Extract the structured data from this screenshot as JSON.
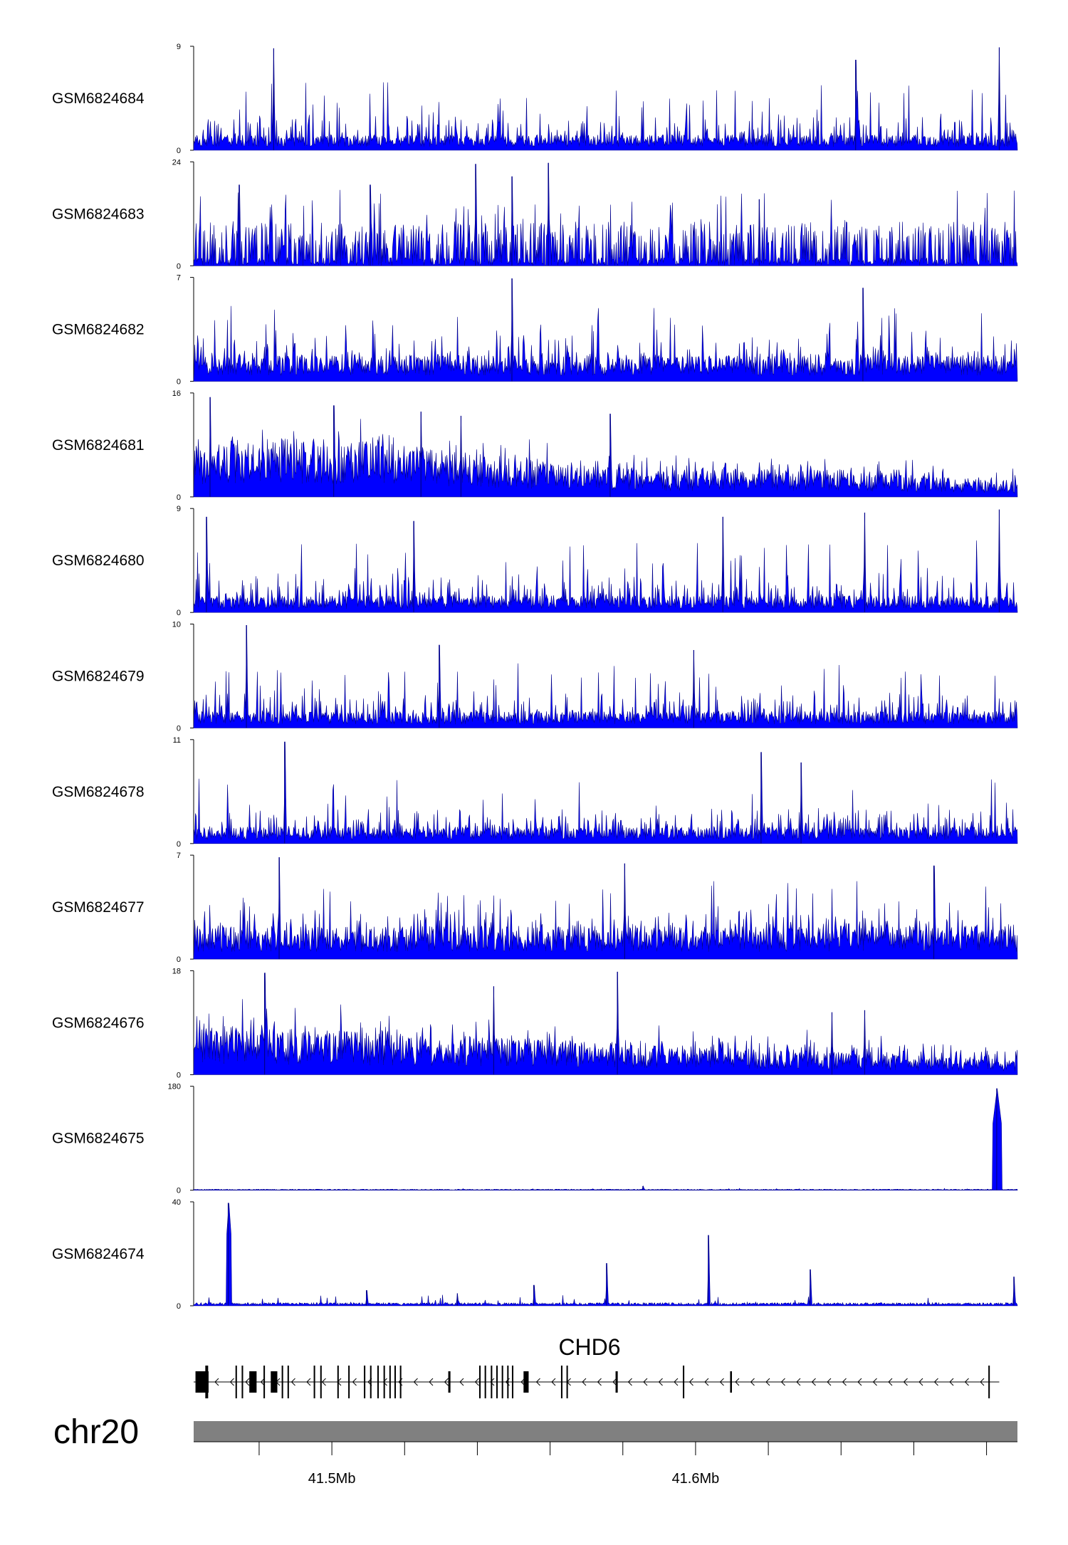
{
  "chart_data": {
    "type": "area",
    "chromosome": "chr20",
    "xlim": [
      41.462,
      41.6885
    ],
    "x_unit": "Mb",
    "x_tick_labels": [
      {
        "value": 41.5,
        "label": "41.5Mb"
      },
      {
        "value": 41.6,
        "label": "41.6Mb"
      }
    ],
    "x_minor_ticks": [
      41.48,
      41.5,
      41.52,
      41.54,
      41.56,
      41.58,
      41.6,
      41.62,
      41.64,
      41.66,
      41.68
    ],
    "series_color": "#0000ff",
    "series_outline_color": "#00008b",
    "tracks": [
      {
        "name": "GSM6824684",
        "ymin": "0",
        "ymax": "9",
        "max": 9,
        "profile": "noise_low",
        "base": 0.13,
        "spike": 0.55,
        "seed": 11,
        "peaks": [
          {
            "x": 41.484,
            "h": 0.98
          },
          {
            "x": 41.644,
            "h": 0.87
          },
          {
            "x": 41.6835,
            "h": 0.99
          }
        ]
      },
      {
        "name": "GSM6824683",
        "ymin": "0",
        "ymax": "24",
        "max": 24,
        "profile": "sparse",
        "base": 0.08,
        "spike": 0.5,
        "seed": 23,
        "peaks": [
          {
            "x": 41.4745,
            "h": 0.78
          },
          {
            "x": 41.5105,
            "h": 0.78
          },
          {
            "x": 41.5395,
            "h": 0.98
          },
          {
            "x": 41.5495,
            "h": 0.86
          },
          {
            "x": 41.5595,
            "h": 0.99
          },
          {
            "x": 41.6175,
            "h": 0.64
          }
        ]
      },
      {
        "name": "GSM6824682",
        "ymin": "0",
        "ymax": "7",
        "max": 7,
        "profile": "noise_mid",
        "base": 0.22,
        "spike": 0.55,
        "seed": 37,
        "peaks": [
          {
            "x": 41.5495,
            "h": 0.99
          },
          {
            "x": 41.646,
            "h": 0.9
          }
        ]
      },
      {
        "name": "GSM6824681",
        "ymin": "0",
        "ymax": "16",
        "max": 16,
        "profile": "decay",
        "base": 0.45,
        "spike": 0.35,
        "seed": 41,
        "peaks": [
          {
            "x": 41.4665,
            "h": 0.96
          },
          {
            "x": 41.5005,
            "h": 0.88
          },
          {
            "x": 41.5245,
            "h": 0.82
          },
          {
            "x": 41.5355,
            "h": 0.78
          },
          {
            "x": 41.5765,
            "h": 0.8
          }
        ]
      },
      {
        "name": "GSM6824680",
        "ymin": "0",
        "ymax": "9",
        "max": 9,
        "profile": "noise_low",
        "base": 0.14,
        "spike": 0.55,
        "seed": 53,
        "peaks": [
          {
            "x": 41.4655,
            "h": 0.92
          },
          {
            "x": 41.5225,
            "h": 0.88
          },
          {
            "x": 41.6075,
            "h": 0.92
          },
          {
            "x": 41.6465,
            "h": 0.96
          },
          {
            "x": 41.6835,
            "h": 0.99
          }
        ]
      },
      {
        "name": "GSM6824679",
        "ymin": "0",
        "ymax": "10",
        "max": 10,
        "profile": "noise_low",
        "base": 0.14,
        "spike": 0.5,
        "seed": 61,
        "peaks": [
          {
            "x": 41.4765,
            "h": 0.99
          },
          {
            "x": 41.5295,
            "h": 0.8
          },
          {
            "x": 41.5995,
            "h": 0.75
          }
        ]
      },
      {
        "name": "GSM6824678",
        "ymin": "0",
        "ymax": "11",
        "max": 11,
        "profile": "noise_low",
        "base": 0.14,
        "spike": 0.5,
        "seed": 71,
        "peaks": [
          {
            "x": 41.487,
            "h": 0.98
          },
          {
            "x": 41.618,
            "h": 0.88
          },
          {
            "x": 41.629,
            "h": 0.78
          }
        ]
      },
      {
        "name": "GSM6824677",
        "ymin": "0",
        "ymax": "7",
        "max": 7,
        "profile": "noise_high",
        "base": 0.28,
        "spike": 0.5,
        "seed": 83,
        "peaks": [
          {
            "x": 41.4855,
            "h": 0.98
          },
          {
            "x": 41.5805,
            "h": 0.92
          },
          {
            "x": 41.6655,
            "h": 0.9
          }
        ]
      },
      {
        "name": "GSM6824676",
        "ymin": "0",
        "ymax": "18",
        "max": 18,
        "profile": "decay2",
        "base": 0.42,
        "spike": 0.35,
        "seed": 97,
        "peaks": [
          {
            "x": 41.4815,
            "h": 0.98
          },
          {
            "x": 41.5445,
            "h": 0.85
          },
          {
            "x": 41.5785,
            "h": 0.99
          },
          {
            "x": 41.6375,
            "h": 0.6
          },
          {
            "x": 41.6465,
            "h": 0.62
          }
        ]
      },
      {
        "name": "GSM6824675",
        "ymin": "0",
        "ymax": "180",
        "max": 180,
        "profile": "flat",
        "base": 0.01,
        "spike": 0.01,
        "seed": 101,
        "peaks": [
          {
            "x": 41.6828,
            "h": 0.98,
            "w": 0.0012
          },
          {
            "x": 41.5855,
            "h": 0.04
          }
        ]
      },
      {
        "name": "GSM6824674",
        "ymin": "0",
        "ymax": "40",
        "max": 40,
        "profile": "flat_low",
        "base": 0.03,
        "spike": 0.08,
        "seed": 113,
        "peaks": [
          {
            "x": 41.4715,
            "h": 0.99,
            "w": 0.0006
          },
          {
            "x": 41.5755,
            "h": 0.41
          },
          {
            "x": 41.6035,
            "h": 0.68
          },
          {
            "x": 41.6315,
            "h": 0.35
          },
          {
            "x": 41.6875,
            "h": 0.28
          },
          {
            "x": 41.5095,
            "h": 0.15
          },
          {
            "x": 41.5345,
            "h": 0.12
          },
          {
            "x": 41.5555,
            "h": 0.2
          }
        ]
      }
    ],
    "gene": {
      "name": "CHD6",
      "start": 41.462,
      "end": 41.6835,
      "strand": "-",
      "exons": [
        {
          "x": 41.4625,
          "w": 0.0028,
          "thick": true
        },
        {
          "x": 41.4652,
          "w": 0.0009,
          "thick": true
        },
        {
          "x": 41.4735,
          "w": 0.0004
        },
        {
          "x": 41.4752,
          "w": 0.0004
        },
        {
          "x": 41.4773,
          "w": 0.002,
          "thick": true
        },
        {
          "x": 41.4812,
          "w": 0.0004
        },
        {
          "x": 41.4832,
          "w": 0.0018,
          "thick": true
        },
        {
          "x": 41.4862,
          "w": 0.0004
        },
        {
          "x": 41.4878,
          "w": 0.0004
        },
        {
          "x": 41.495,
          "w": 0.0004
        },
        {
          "x": 41.4968,
          "w": 0.0004
        },
        {
          "x": 41.5015,
          "w": 0.0004
        },
        {
          "x": 41.5045,
          "w": 0.0004
        },
        {
          "x": 41.5088,
          "w": 0.0004
        },
        {
          "x": 41.5105,
          "w": 0.0004
        },
        {
          "x": 41.5125,
          "w": 0.0004
        },
        {
          "x": 41.5142,
          "w": 0.0004
        },
        {
          "x": 41.5158,
          "w": 0.0004
        },
        {
          "x": 41.5172,
          "w": 0.0004
        },
        {
          "x": 41.5187,
          "w": 0.0004
        },
        {
          "x": 41.532,
          "w": 0.0006,
          "thick": true
        },
        {
          "x": 41.5405,
          "w": 0.0004
        },
        {
          "x": 41.542,
          "w": 0.0004
        },
        {
          "x": 41.5437,
          "w": 0.0004
        },
        {
          "x": 41.5452,
          "w": 0.0004
        },
        {
          "x": 41.5467,
          "w": 0.0004
        },
        {
          "x": 41.5482,
          "w": 0.0004
        },
        {
          "x": 41.5495,
          "w": 0.0004
        },
        {
          "x": 41.5527,
          "w": 0.0014,
          "thick": true
        },
        {
          "x": 41.563,
          "w": 0.0004
        },
        {
          "x": 41.5645,
          "w": 0.0004
        },
        {
          "x": 41.578,
          "w": 0.0006,
          "thick": true
        },
        {
          "x": 41.5965,
          "w": 0.0004
        },
        {
          "x": 41.6095,
          "w": 0.0005,
          "thick": true
        },
        {
          "x": 41.6805,
          "w": 0.0004
        }
      ]
    }
  }
}
